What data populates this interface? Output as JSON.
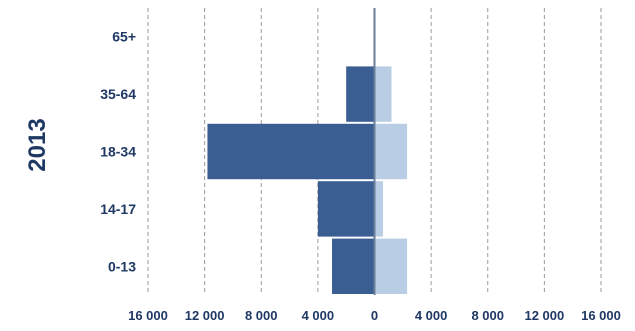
{
  "chart_data": {
    "type": "bar",
    "orientation": "horizontal",
    "style": "population-pyramid",
    "side_label": "2013",
    "categories": [
      "0-13",
      "14-17",
      "18-34",
      "35-64",
      "65+"
    ],
    "series": [
      {
        "side": "left",
        "values": [
          3000,
          4000,
          11800,
          2000,
          0
        ]
      },
      {
        "side": "right",
        "values": [
          2300,
          600,
          2300,
          1200,
          0
        ]
      }
    ],
    "xlim": [
      -16000,
      16000
    ],
    "xticks": [
      -16000,
      -12000,
      -8000,
      -4000,
      0,
      4000,
      8000,
      12000,
      16000
    ],
    "xtick_labels": [
      "16 000",
      "12 000",
      "8 000",
      "4 000",
      "0",
      "4 000",
      "8 000",
      "12 000",
      "16 000"
    ],
    "grid": "vertical-dashed",
    "colors": {
      "left": "#3b5e92",
      "right": "#b9cde4",
      "text": "#1f3864",
      "grid": "#9a9a9a",
      "zero_line": "#6b7f99"
    }
  }
}
